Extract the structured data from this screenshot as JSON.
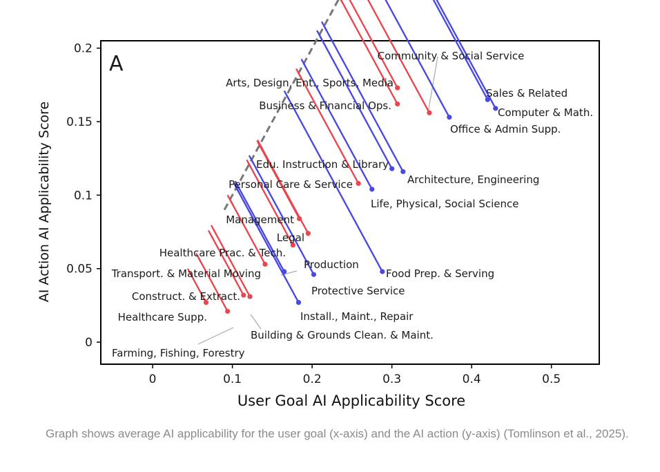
{
  "chart_data": {
    "type": "scatter",
    "panel_label": "A",
    "xlabel": "User Goal AI Applicability Score",
    "ylabel": "AI Action AI Applicability Score",
    "xlim": [
      -0.065,
      0.56
    ],
    "ylim": [
      -0.015,
      0.205
    ],
    "x_ticks": [
      "0",
      "0.1",
      "0.2",
      "0.3",
      "0.4",
      "0.5"
    ],
    "x_tick_values": [
      0,
      0.1,
      0.2,
      0.3,
      0.4,
      0.5
    ],
    "y_ticks": [
      "0",
      "0.05",
      "0.1",
      "0.15",
      "0.2"
    ],
    "y_tick_values": [
      0,
      0.05,
      0.1,
      0.15,
      0.2
    ],
    "diagonal": {
      "from": 0.09,
      "to": 0.427,
      "color": "#777777"
    },
    "colors": {
      "above": "#e8474f",
      "below": "#4a4ae0",
      "leader": "#aaaaaa"
    },
    "points": [
      {
        "label": "Community & Social Service",
        "x": 0.347,
        "y": 0.156,
        "side": "above"
      },
      {
        "label": "Arts, Design, Ent., Sports, Media",
        "x": 0.307,
        "y": 0.173,
        "side": "above"
      },
      {
        "label": "Business & Financial Ops.",
        "x": 0.307,
        "y": 0.162,
        "side": "above"
      },
      {
        "label": "Sales & Related",
        "x": 0.42,
        "y": 0.165,
        "side": "below"
      },
      {
        "label": "Computer & Math.",
        "x": 0.43,
        "y": 0.159,
        "side": "below"
      },
      {
        "label": "Office & Admin Supp.",
        "x": 0.372,
        "y": 0.153,
        "side": "below"
      },
      {
        "label": "Edu. Instruction & Library",
        "x": 0.3,
        "y": 0.118,
        "side": "below"
      },
      {
        "label": "Architecture, Engineering",
        "x": 0.314,
        "y": 0.116,
        "side": "below"
      },
      {
        "label": "Personal Care & Service",
        "x": 0.258,
        "y": 0.108,
        "side": "above"
      },
      {
        "label": "Life, Physical, Social Science",
        "x": 0.275,
        "y": 0.104,
        "side": "below"
      },
      {
        "label": "Management",
        "x": 0.184,
        "y": 0.084,
        "side": "above"
      },
      {
        "label": "Legal",
        "x": 0.195,
        "y": 0.074,
        "side": "above"
      },
      {
        "label": "Healthcare Prac. & Tech.",
        "x": 0.176,
        "y": 0.066,
        "side": "above"
      },
      {
        "label": "Production",
        "x": 0.165,
        "y": 0.048,
        "side": "below"
      },
      {
        "label": "Food Prep. & Serving",
        "x": 0.288,
        "y": 0.048,
        "side": "below"
      },
      {
        "label": "Transport. & Material Moving",
        "x": 0.141,
        "y": 0.053,
        "side": "above"
      },
      {
        "label": "Protective Service",
        "x": 0.202,
        "y": 0.046,
        "side": "below"
      },
      {
        "label": "Construct. & Extract.",
        "x": 0.114,
        "y": 0.032,
        "side": "above"
      },
      {
        "label": "Building & Grounds Clean. & Maint.",
        "x": 0.122,
        "y": 0.031,
        "side": "above"
      },
      {
        "label": "Install., Maint., Repair",
        "x": 0.183,
        "y": 0.027,
        "side": "below"
      },
      {
        "label": "Healthcare Supp.",
        "x": 0.067,
        "y": 0.027,
        "side": "above"
      },
      {
        "label": "Farming, Fishing, Forestry",
        "x": 0.094,
        "y": 0.021,
        "side": "above"
      }
    ]
  },
  "caption": "Graph shows average AI applicability for the user goal (x-axis) and the AI action (y-axis) (Tomlinson et al., 2025)."
}
